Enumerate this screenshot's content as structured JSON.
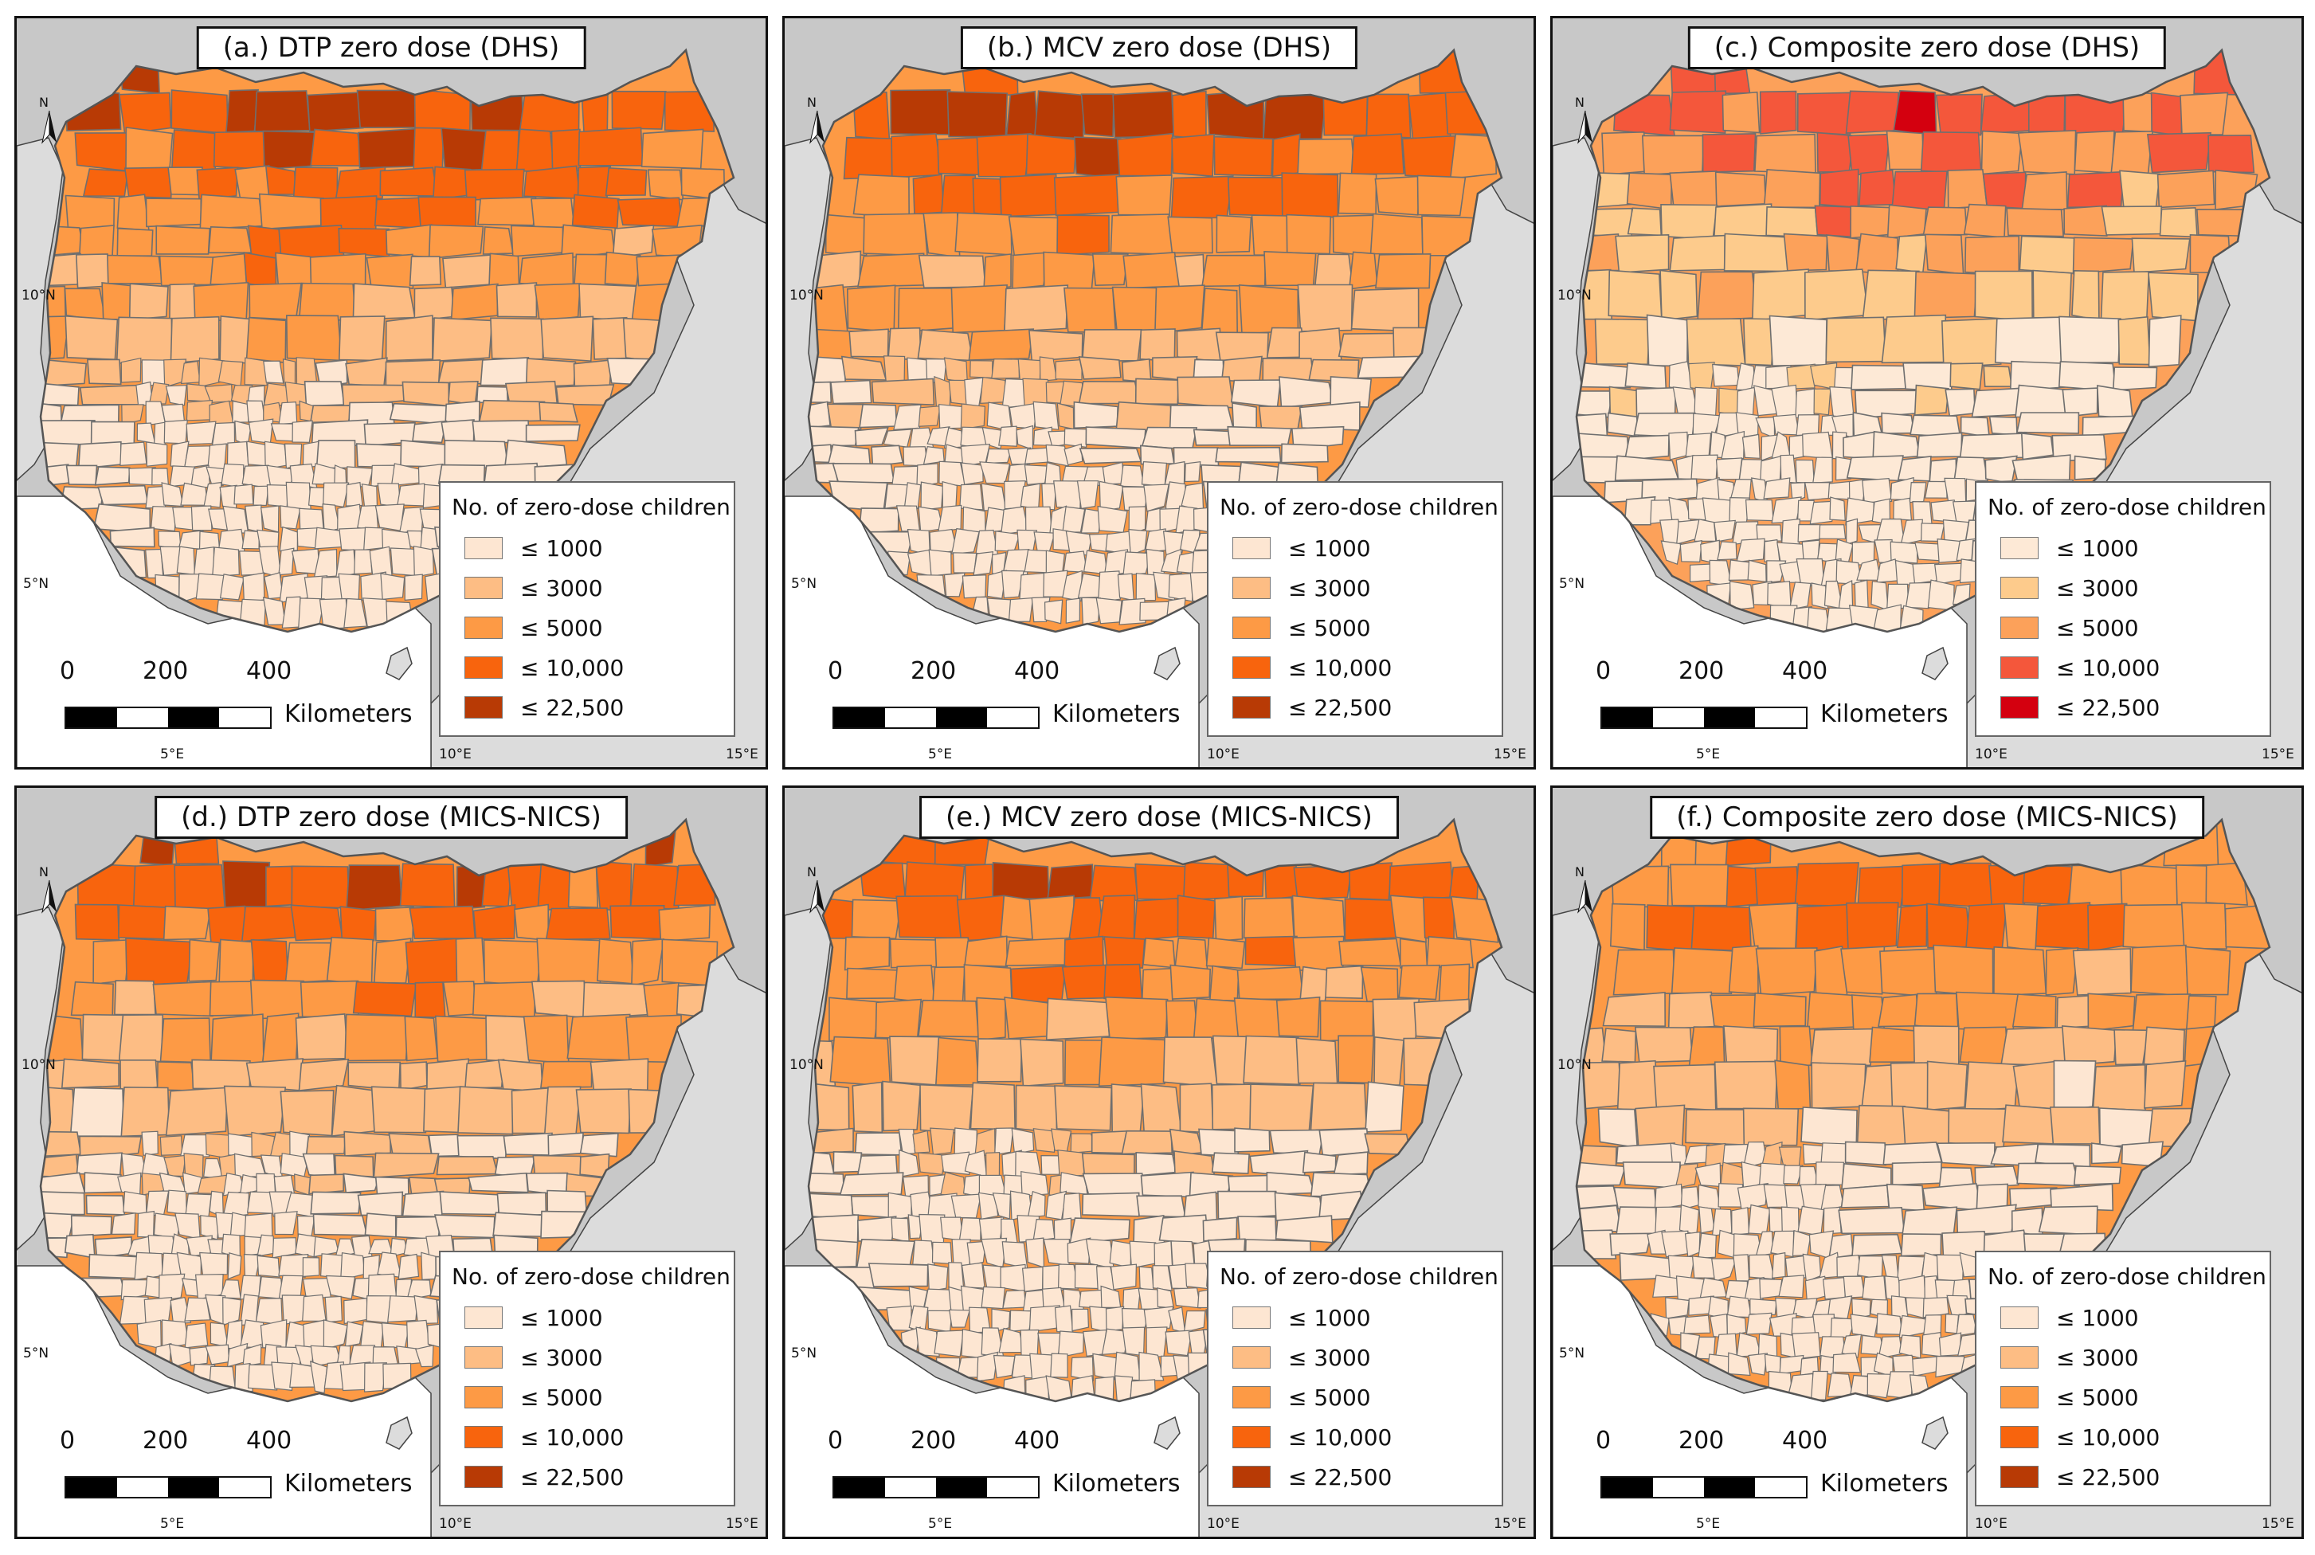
{
  "map": {
    "legend_title": "No. of zero-dose children",
    "legend_bins": [
      "≤ 1000",
      "≤ 3000",
      "≤ 5000",
      "≤ 10,000",
      "≤ 22,500"
    ],
    "north_label": "N",
    "lat_labels": [
      "10°N",
      "5°N"
    ],
    "lon_labels": [
      "5°E",
      "10°E",
      "15°E"
    ],
    "scale_ticks": [
      "0",
      "200",
      "400"
    ],
    "scale_unit": "Kilometers",
    "colors": {
      "background": "#c8c8c8",
      "land_outside": "#dcdcdc",
      "sea": "#ffffff",
      "boundary": "#6f6f6f"
    },
    "palettes": {
      "orange": [
        "#fde6d2",
        "#fdbd84",
        "#fd9a45",
        "#f8640d",
        "#b83a05"
      ],
      "red": [
        "#fde9d6",
        "#fdcb8c",
        "#fca15a",
        "#f4573b",
        "#d4000f"
      ]
    },
    "panels": [
      {
        "title": "(a.) DTP zero dose (DHS)",
        "palette": "orange"
      },
      {
        "title": "(b.) MCV zero dose (DHS)",
        "palette": "orange"
      },
      {
        "title": "(c.) Composite zero dose (DHS)",
        "palette": "red"
      },
      {
        "title": "(d.) DTP zero dose (MICS-NICS)",
        "palette": "orange"
      },
      {
        "title": "(e.) MCV zero dose (MICS-NICS)",
        "palette": "orange"
      },
      {
        "title": "(f.) Composite zero dose (MICS-NICS)",
        "palette": "orange"
      }
    ]
  }
}
